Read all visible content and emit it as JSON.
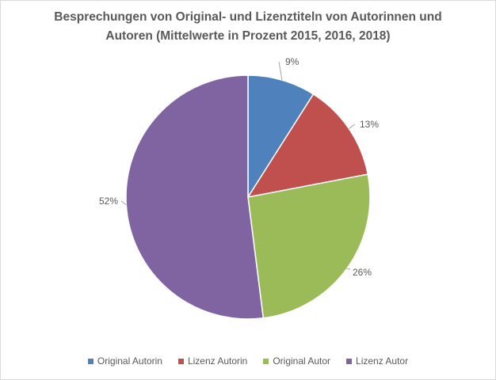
{
  "chart_data": {
    "type": "pie",
    "title_lines": [
      "Besprechungen von Original- und Lizenztiteln von Autorinnen und",
      "Autoren (Mittelwerte in Prozent 2015, 2016, 2018)"
    ],
    "slices": [
      {
        "name": "Original Autorin",
        "value": 9,
        "label": "9%",
        "color": "#4f81bd"
      },
      {
        "name": "Lizenz Autorin",
        "value": 13,
        "label": "13%",
        "color": "#c0504d"
      },
      {
        "name": "Original Autor",
        "value": 26,
        "label": "26%",
        "color": "#9bbb59"
      },
      {
        "name": "Lizenz Autor",
        "value": 52,
        "label": "52%",
        "color": "#8064a2"
      }
    ],
    "start_angle": "12 o'clock",
    "direction": "clockwise",
    "labels": "outside with leader lines",
    "legend_position": "bottom"
  }
}
